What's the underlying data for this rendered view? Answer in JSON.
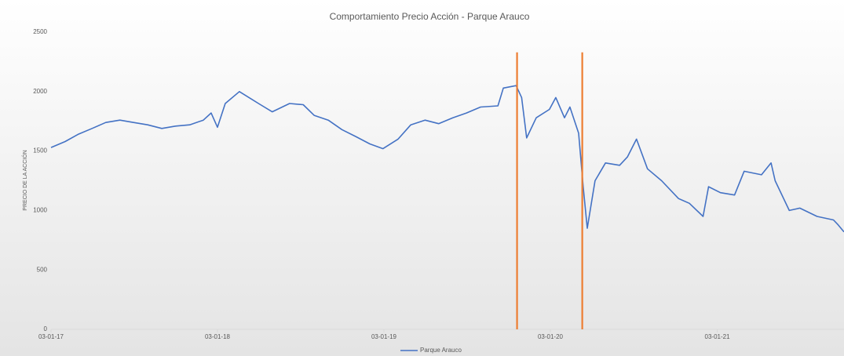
{
  "chart_data": {
    "type": "line",
    "title": "Comportamiento Precio Acción - Parque Arauco",
    "y_label": "PRECIO DE LA ACCIÓN",
    "xlim": [
      "03-01-17",
      "08-10-21"
    ],
    "xticks": [
      "03-01-17",
      "03-01-18",
      "03-01-19",
      "03-01-20",
      "03-01-21"
    ],
    "ylim": [
      0,
      2500
    ],
    "yticks": [
      0,
      500,
      1000,
      1500,
      2000,
      2500
    ],
    "grid": false,
    "legend": "bottom",
    "series": [
      {
        "name": "Parque Arauco",
        "color": "#4472c4",
        "x": [
          "03-01-17",
          "03-02-17",
          "03-03-17",
          "03-04-17",
          "03-05-17",
          "03-06-17",
          "03-07-17",
          "03-08-17",
          "03-09-17",
          "03-10-17",
          "03-11-17",
          "03-12-17",
          "20-12-17",
          "03-01-18",
          "20-01-18",
          "20-02-18",
          "03-04-18",
          "03-05-18",
          "10-06-18",
          "10-07-18",
          "03-08-18",
          "03-09-18",
          "03-10-18",
          "03-11-18",
          "03-12-18",
          "01-01-19",
          "03-02-19",
          "03-03-19",
          "03-04-19",
          "03-05-19",
          "03-06-19",
          "03-07-19",
          "03-08-19",
          "10-09-19",
          "22-09-19",
          "20-10-19",
          "01-11-19",
          "12-11-19",
          "03-12-19",
          "01-01-20",
          "15-01-20",
          "03-02-20",
          "15-02-20",
          "05-03-20",
          "15-03-20",
          "24-03-20",
          "10-04-20",
          "03-05-20",
          "03-06-20",
          "20-06-20",
          "10-07-20",
          "03-08-20",
          "03-09-20",
          "10-10-20",
          "03-11-20",
          "03-12-20",
          "15-12-20",
          "10-01-21",
          "10-02-21",
          "03-03-21",
          "10-04-21",
          "01-05-21",
          "10-05-21",
          "10-06-21",
          "03-07-21",
          "10-08-21",
          "15-09-21",
          "25-09-21",
          "08-10-21"
        ],
        "values": [
          1530,
          1580,
          1640,
          1690,
          1740,
          1760,
          1740,
          1720,
          1690,
          1710,
          1720,
          1760,
          1820,
          1700,
          1900,
          2000,
          1900,
          1830,
          1900,
          1890,
          1800,
          1760,
          1680,
          1620,
          1560,
          1520,
          1600,
          1720,
          1760,
          1730,
          1780,
          1820,
          1870,
          1880,
          2030,
          2050,
          1950,
          1610,
          1780,
          1850,
          1950,
          1780,
          1870,
          1650,
          1200,
          850,
          1250,
          1400,
          1380,
          1450,
          1600,
          1350,
          1250,
          1100,
          1060,
          950,
          1200,
          1150,
          1130,
          1330,
          1300,
          1400,
          1250,
          1000,
          1020,
          950,
          920,
          880,
          820
        ]
      }
    ],
    "events": {
      "color": "#ed7d31",
      "x": [
        "22-10-19",
        "13-03-20"
      ],
      "values": [
        2330,
        2330
      ]
    }
  }
}
